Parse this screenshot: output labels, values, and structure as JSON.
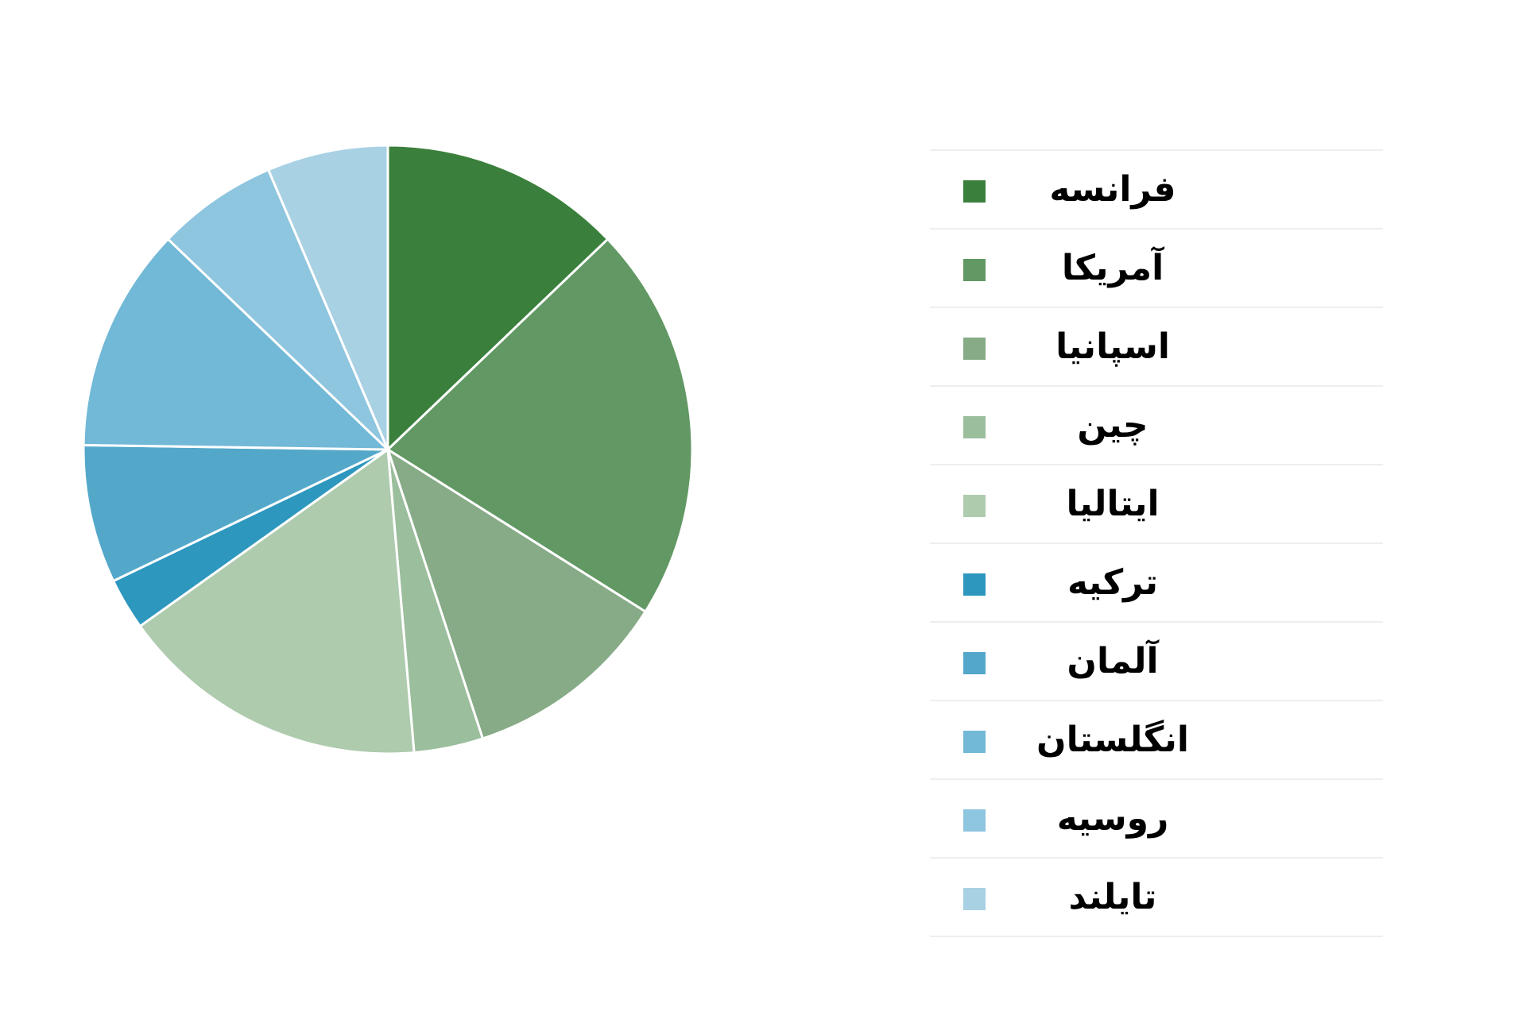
{
  "chart_data": {
    "type": "pie",
    "title": "",
    "start_angle_deg": 0,
    "direction": "clockwise",
    "legend_position": "right",
    "slices": [
      {
        "label": "فرانسه",
        "value": 14,
        "color": "#3a803c"
      },
      {
        "label": "آمریکا",
        "value": 23,
        "color": "#619863"
      },
      {
        "label": "اسپانیا",
        "value": 12,
        "color": "#86ab86"
      },
      {
        "label": "چین",
        "value": 4,
        "color": "#9bbe9c"
      },
      {
        "label": "ایتالیا",
        "value": 18,
        "color": "#aecbae"
      },
      {
        "label": "ترکیه",
        "value": 3,
        "color": "#2d97be"
      },
      {
        "label": "آلمان",
        "value": 8,
        "color": "#53a8ca"
      },
      {
        "label": "انگلستان",
        "value": 13,
        "color": "#72b8d7"
      },
      {
        "label": "روسیه",
        "value": 7,
        "color": "#8ec5df"
      },
      {
        "label": "تایلند",
        "value": 7,
        "color": "#a8d1e3"
      }
    ]
  }
}
